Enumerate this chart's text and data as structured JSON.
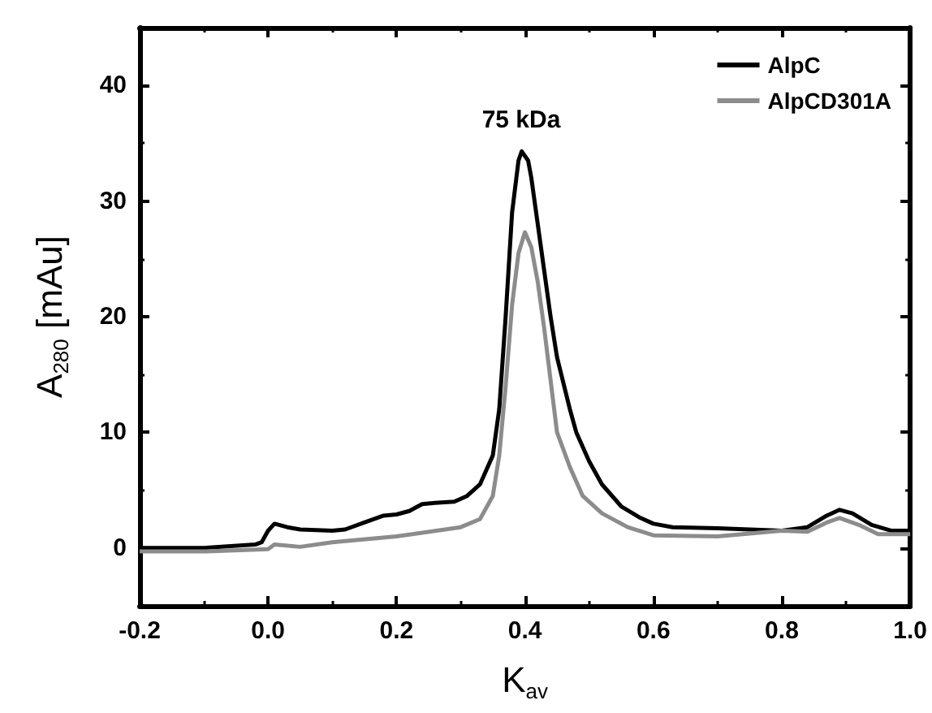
{
  "chart_data": {
    "type": "line",
    "xlabel": "K$_{av}$",
    "ylabel": "A$_{280}$ [mAu]",
    "xlim": [
      -0.2,
      1.0
    ],
    "xticks": [
      -0.2,
      {
        "value": 0,
        "label": "0.0"
      },
      0.2,
      0.4,
      0.6,
      0.8,
      {
        "value": 1,
        "label": "1.0"
      }
    ],
    "ylim": [
      -5,
      45
    ],
    "yticks": [
      0,
      10,
      20,
      30,
      40
    ],
    "grid": false,
    "legend": "top right",
    "marker": "none",
    "line_style": "solid",
    "annotations": [
      "75 kDa"
    ],
    "series": [
      {
        "name": "AlpC",
        "color": "#000000",
        "x": [
          -0.2,
          -0.1,
          -0.02,
          -0.01,
          0.0,
          0.01,
          0.03,
          0.05,
          0.1,
          0.12,
          0.15,
          0.18,
          0.2,
          0.22,
          0.24,
          0.26,
          0.29,
          0.31,
          0.33,
          0.35,
          0.36,
          0.37,
          0.38,
          0.39,
          0.395,
          0.405,
          0.41,
          0.42,
          0.43,
          0.44,
          0.45,
          0.47,
          0.48,
          0.5,
          0.52,
          0.55,
          0.58,
          0.6,
          0.63,
          0.7,
          0.8,
          0.84,
          0.87,
          0.89,
          0.91,
          0.94,
          0.97,
          1.0
        ],
        "values": [
          0,
          0,
          0.3,
          0.5,
          1.5,
          2.1,
          1.8,
          1.6,
          1.5,
          1.6,
          2.2,
          2.8,
          2.9,
          3.2,
          3.8,
          3.9,
          4.0,
          4.5,
          5.5,
          8,
          12,
          20,
          29,
          33.5,
          34.3,
          33.5,
          32,
          28,
          24,
          20,
          16.5,
          12,
          10,
          7.5,
          5.5,
          3.6,
          2.6,
          2.1,
          1.8,
          1.7,
          1.5,
          1.8,
          2.8,
          3.3,
          3.0,
          2.0,
          1.5,
          1.5
        ]
      },
      {
        "name": "AlpCD301A",
        "color": "#8c8c8c",
        "x": [
          -0.2,
          -0.1,
          0.0,
          0.01,
          0.05,
          0.1,
          0.2,
          0.3,
          0.33,
          0.35,
          0.36,
          0.37,
          0.38,
          0.39,
          0.4,
          0.41,
          0.42,
          0.43,
          0.44,
          0.45,
          0.47,
          0.49,
          0.52,
          0.56,
          0.6,
          0.7,
          0.8,
          0.84,
          0.87,
          0.89,
          0.92,
          0.95,
          1.0
        ],
        "values": [
          -0.3,
          -0.3,
          -0.1,
          0.3,
          0.1,
          0.5,
          1.0,
          1.8,
          2.5,
          4.5,
          8,
          14,
          21,
          25.5,
          27.3,
          26,
          23,
          19,
          14.5,
          10,
          7,
          4.5,
          3,
          1.8,
          1.1,
          1.0,
          1.5,
          1.4,
          2.2,
          2.6,
          2.0,
          1.2,
          1.2
        ]
      }
    ]
  }
}
